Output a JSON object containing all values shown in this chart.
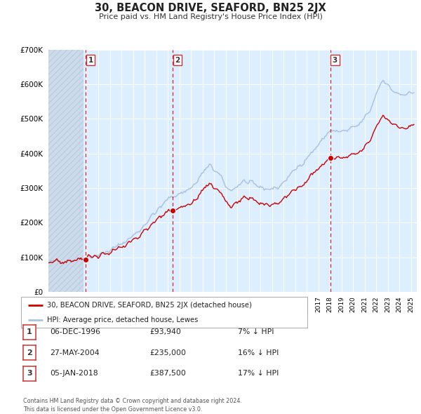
{
  "title": "30, BEACON DRIVE, SEAFORD, BN25 2JX",
  "subtitle": "Price paid vs. HM Land Registry's House Price Index (HPI)",
  "hpi_color": "#aac4e0",
  "price_color": "#cc0000",
  "dot_color": "#cc0000",
  "plot_bg": "#ddeeff",
  "grid_color": "#ffffff",
  "vline_color": "#cc0000",
  "ylim": [
    0,
    700000
  ],
  "yticks": [
    0,
    100000,
    200000,
    300000,
    400000,
    500000,
    600000,
    700000
  ],
  "xmin": 1993.7,
  "xmax": 2025.5,
  "hatch_end": 1996.75,
  "trans_years": [
    1996.92,
    2004.41,
    2018.02
  ],
  "trans_prices": [
    93940,
    235000,
    387500
  ],
  "trans_labels": [
    "1",
    "2",
    "3"
  ],
  "legend_price_label": "30, BEACON DRIVE, SEAFORD, BN25 2JX (detached house)",
  "legend_hpi_label": "HPI: Average price, detached house, Lewes",
  "table_rows": [
    {
      "num": "1",
      "date": "06-DEC-1996",
      "price": "£93,940",
      "pct": "7% ↓ HPI"
    },
    {
      "num": "2",
      "date": "27-MAY-2004",
      "price": "£235,000",
      "pct": "16% ↓ HPI"
    },
    {
      "num": "3",
      "date": "05-JAN-2018",
      "price": "£387,500",
      "pct": "17% ↓ HPI"
    }
  ],
  "footer": "Contains HM Land Registry data © Crown copyright and database right 2024.\nThis data is licensed under the Open Government Licence v3.0."
}
